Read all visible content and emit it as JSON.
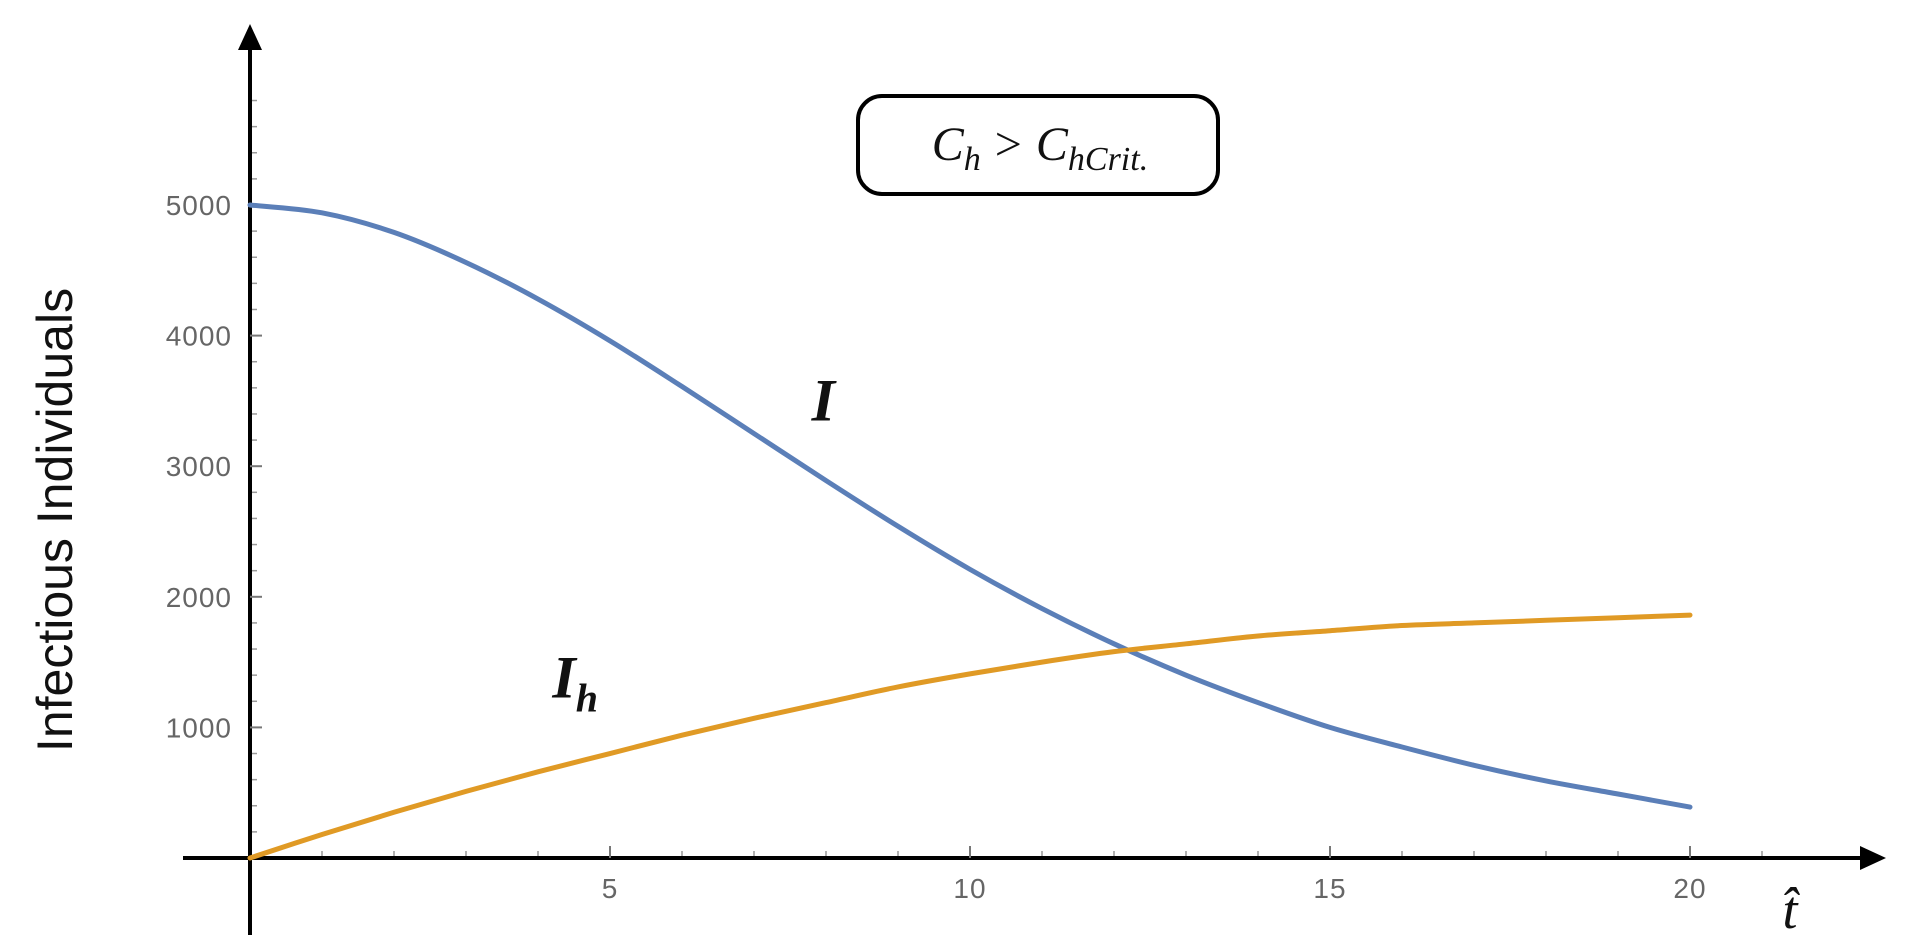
{
  "chart_data": {
    "type": "line",
    "xlabel": "t̂",
    "ylabel": "Infectious Individuals",
    "xlim": [
      0,
      23
    ],
    "ylim": [
      0,
      6300
    ],
    "xticks": [
      5,
      10,
      15,
      20
    ],
    "yticks": [
      1000,
      2000,
      3000,
      4000,
      5000
    ],
    "grid": false,
    "annotation": {
      "lhs_symbol": "C",
      "lhs_sub": "h",
      "operator": ">",
      "rhs_symbol": "C",
      "rhs_sub": "hCrit."
    },
    "series": [
      {
        "name": "I",
        "color": "#5b7fb8",
        "label_symbol": "I",
        "label_sub": "",
        "label_at": [
          7.8,
          3350
        ],
        "x": [
          0,
          1,
          2,
          3,
          4,
          5,
          6,
          7,
          8,
          9,
          10,
          11,
          12,
          13,
          14,
          15,
          16,
          17,
          18,
          19,
          20
        ],
        "y": [
          5000,
          4940,
          4790,
          4560,
          4280,
          3960,
          3610,
          3250,
          2890,
          2540,
          2210,
          1910,
          1640,
          1400,
          1190,
          1000,
          850,
          710,
          590,
          490,
          390
        ]
      },
      {
        "name": "I_h",
        "color": "#e09a25",
        "label_symbol": "I",
        "label_sub": "h",
        "label_at": [
          4.2,
          1230
        ],
        "x": [
          0,
          1,
          2,
          3,
          4,
          5,
          6,
          7,
          8,
          9,
          10,
          11,
          12,
          13,
          14,
          15,
          16,
          17,
          18,
          19,
          20
        ],
        "y": [
          0,
          180,
          350,
          510,
          660,
          800,
          940,
          1070,
          1190,
          1310,
          1410,
          1500,
          1580,
          1640,
          1700,
          1740,
          1780,
          1800,
          1820,
          1840,
          1860
        ]
      }
    ]
  }
}
